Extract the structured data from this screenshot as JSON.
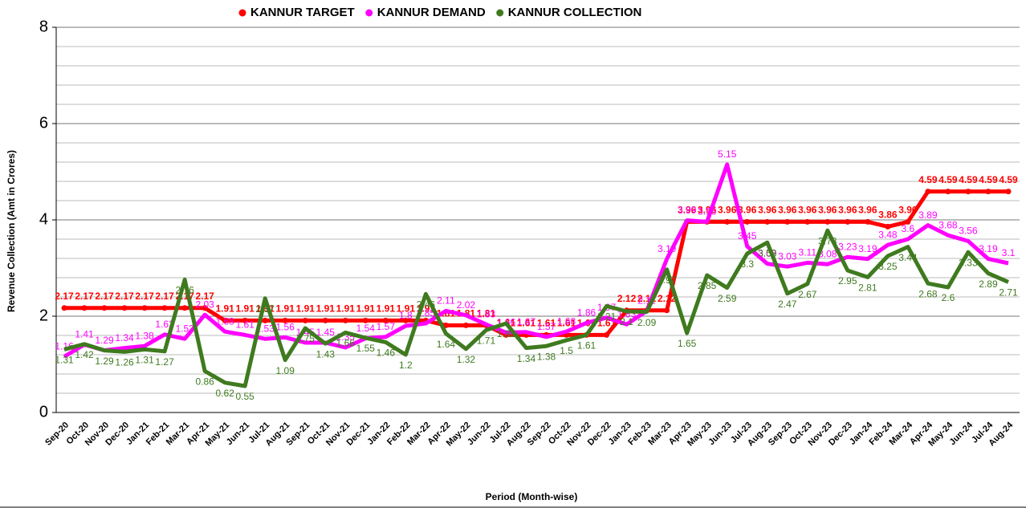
{
  "chart_data": {
    "type": "line",
    "x_label": "Period (Month-wise)",
    "y_label": "Revenue Collection (Amt in Crores)",
    "categories": [
      "Sep-20",
      "Oct-20",
      "Nov-20",
      "Dec-20",
      "Jan-21",
      "Feb-21",
      "Mar-21",
      "Apr-21",
      "May-21",
      "Jun-21",
      "Jul-21",
      "Aug-21",
      "Sep-21",
      "Oct-21",
      "Nov-21",
      "Dec-21",
      "Jan-22",
      "Feb-22",
      "Mar-22",
      "Apr-22",
      "May-22",
      "Jun-22",
      "Jul-22",
      "Aug-22",
      "Sep-22",
      "Oct-22",
      "Nov-22",
      "Dec-22",
      "Jan-23",
      "Feb-23",
      "Mar-23",
      "Apr-23",
      "May-23",
      "Jun-23",
      "Jul-23",
      "Aug-23",
      "Sep-23",
      "Oct-23",
      "Nov-23",
      "Dec-23",
      "Jan-24",
      "Feb-24",
      "Mar-24",
      "Apr-24",
      "May-24",
      "Jun-24",
      "Jul-24",
      "Aug-24"
    ],
    "series": [
      {
        "name": "KANNUR TARGET",
        "color": "#ff0000",
        "values": [
          2.17,
          2.17,
          2.17,
          2.17,
          2.17,
          2.17,
          2.17,
          2.17,
          1.91,
          1.91,
          1.91,
          1.91,
          1.91,
          1.91,
          1.91,
          1.91,
          1.91,
          1.91,
          1.91,
          1.81,
          1.81,
          1.81,
          1.61,
          1.61,
          1.61,
          1.61,
          1.61,
          1.61,
          2.12,
          2.12,
          2.12,
          3.96,
          3.96,
          3.96,
          3.96,
          3.96,
          3.96,
          3.96,
          3.96,
          3.96,
          3.96,
          3.86,
          3.96,
          4.59,
          4.59,
          4.59,
          4.59,
          4.59
        ]
      },
      {
        "name": "KANNUR DEMAND",
        "color": "#ff00ff",
        "values": [
          1.16,
          1.41,
          1.29,
          1.34,
          1.38,
          1.62,
          1.53,
          2.03,
          1.68,
          1.61,
          1.53,
          1.56,
          1.45,
          1.45,
          1.35,
          1.54,
          1.57,
          1.8,
          1.85,
          2.11,
          2.02,
          1.83,
          1.66,
          1.67,
          1.57,
          1.68,
          1.86,
          1.97,
          1.83,
          2.11,
          3.19,
          3.99,
          3.96,
          5.15,
          3.45,
          3.09,
          3.03,
          3.11,
          3.08,
          3.23,
          3.19,
          3.48,
          3.6,
          3.89,
          3.68,
          3.56,
          3.19,
          3.1
        ]
      },
      {
        "name": "KANNUR COLLECTION",
        "color": "#3f7a1f",
        "values": [
          1.31,
          1.42,
          1.29,
          1.26,
          1.31,
          1.27,
          2.76,
          0.86,
          0.62,
          0.55,
          2.37,
          1.09,
          1.75,
          1.43,
          1.66,
          1.55,
          1.46,
          1.2,
          2.46,
          1.64,
          1.32,
          1.71,
          1.85,
          1.34,
          1.38,
          1.5,
          1.61,
          2.21,
          2.1,
          2.09,
          2.97,
          1.65,
          2.85,
          2.59,
          3.3,
          3.53,
          2.47,
          2.67,
          3.78,
          2.95,
          2.81,
          3.25,
          3.44,
          2.68,
          2.6,
          3.33,
          2.89,
          2.71
        ]
      }
    ],
    "ylim": [
      0,
      8
    ],
    "yticks": [
      0,
      2,
      4,
      6,
      8
    ],
    "grid": true,
    "legend": "top"
  }
}
